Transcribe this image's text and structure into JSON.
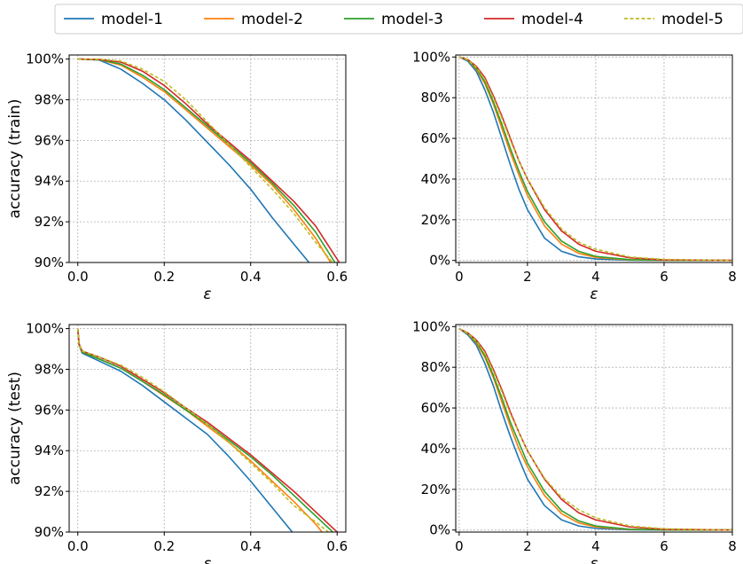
{
  "legend": {
    "placement": "top-center",
    "entries": [
      {
        "name": "model-1",
        "color": "#1f77b4",
        "dash": "solid"
      },
      {
        "name": "model-2",
        "color": "#ff7f0e",
        "dash": "solid"
      },
      {
        "name": "model-3",
        "color": "#2ca02c",
        "dash": "solid"
      },
      {
        "name": "model-4",
        "color": "#d62728",
        "dash": "solid"
      },
      {
        "name": "model-5",
        "color": "#bcbd22",
        "dash": "dashed"
      }
    ]
  },
  "chart_data": [
    {
      "type": "line",
      "panel": "top-left",
      "xlabel": "ε",
      "ylabel": "accuracy (train)",
      "xlim": [
        -0.02,
        0.62
      ],
      "ylim": [
        90,
        100.2
      ],
      "xticks": [
        0.0,
        0.2,
        0.4,
        0.6
      ],
      "xtick_labels": [
        "0.0",
        "0.2",
        "0.4",
        "0.6"
      ],
      "yticks": [
        90,
        92,
        94,
        96,
        98,
        100
      ],
      "ytick_labels": [
        "90%",
        "92%",
        "94%",
        "96%",
        "98%",
        "100%"
      ],
      "grid": true,
      "series": [
        {
          "name": "model-1",
          "x": [
            0,
            0.05,
            0.1,
            0.15,
            0.2,
            0.25,
            0.3,
            0.35,
            0.4,
            0.45,
            0.5,
            0.535
          ],
          "y": [
            100,
            99.95,
            99.5,
            98.8,
            98.0,
            97.0,
            95.9,
            94.8,
            93.6,
            92.2,
            90.9,
            90.0
          ]
        },
        {
          "name": "model-2",
          "x": [
            0,
            0.05,
            0.1,
            0.15,
            0.2,
            0.25,
            0.3,
            0.35,
            0.4,
            0.45,
            0.5,
            0.55,
            0.585
          ],
          "y": [
            100,
            99.97,
            99.7,
            99.1,
            98.4,
            97.5,
            96.6,
            95.7,
            94.8,
            93.8,
            92.6,
            91.2,
            90.0
          ]
        },
        {
          "name": "model-3",
          "x": [
            0,
            0.05,
            0.1,
            0.15,
            0.2,
            0.25,
            0.3,
            0.35,
            0.4,
            0.45,
            0.5,
            0.55,
            0.595
          ],
          "y": [
            100,
            99.97,
            99.75,
            99.2,
            98.5,
            97.6,
            96.7,
            95.8,
            94.9,
            93.9,
            92.8,
            91.5,
            90.0
          ]
        },
        {
          "name": "model-4",
          "x": [
            0,
            0.05,
            0.1,
            0.15,
            0.2,
            0.25,
            0.3,
            0.35,
            0.4,
            0.45,
            0.5,
            0.55,
            0.605
          ],
          "y": [
            100,
            99.98,
            99.85,
            99.4,
            98.7,
            97.8,
            96.8,
            95.9,
            95.0,
            94.0,
            93.0,
            91.8,
            90.0
          ]
        },
        {
          "name": "model-5",
          "x": [
            0,
            0.05,
            0.1,
            0.15,
            0.2,
            0.25,
            0.3,
            0.35,
            0.4,
            0.45,
            0.5,
            0.55,
            0.59
          ],
          "y": [
            100,
            99.99,
            99.9,
            99.5,
            98.9,
            98.0,
            96.9,
            95.8,
            94.7,
            93.6,
            92.4,
            91.0,
            90.0
          ]
        }
      ]
    },
    {
      "type": "line",
      "panel": "top-right",
      "xlabel": "ε",
      "ylabel": "",
      "xlim": [
        -0.1,
        8
      ],
      "ylim": [
        -1,
        101
      ],
      "xticks": [
        0,
        2,
        4,
        6,
        8
      ],
      "xtick_labels": [
        "0",
        "2",
        "4",
        "6",
        "8"
      ],
      "yticks": [
        0,
        20,
        40,
        60,
        80,
        100
      ],
      "ytick_labels": [
        "0%",
        "20%",
        "40%",
        "60%",
        "80%",
        "100%"
      ],
      "grid": true,
      "series": [
        {
          "name": "model-1",
          "x": [
            0,
            0.25,
            0.5,
            0.75,
            1,
            1.25,
            1.5,
            1.75,
            2,
            2.5,
            3,
            3.5,
            4,
            5,
            6,
            8
          ],
          "y": [
            100,
            98,
            93,
            84,
            73,
            60,
            47,
            35,
            25,
            11,
            4.5,
            1.8,
            0.7,
            0.1,
            0,
            0
          ]
        },
        {
          "name": "model-2",
          "x": [
            0,
            0.25,
            0.5,
            0.75,
            1,
            1.25,
            1.5,
            1.75,
            2,
            2.5,
            3,
            3.5,
            4,
            5,
            6,
            8
          ],
          "y": [
            100,
            98.5,
            94,
            87,
            77,
            65,
            53,
            42,
            32,
            17,
            8,
            3.5,
            1.5,
            0.3,
            0.05,
            0
          ]
        },
        {
          "name": "model-3",
          "x": [
            0,
            0.25,
            0.5,
            0.75,
            1,
            1.25,
            1.5,
            1.75,
            2,
            2.5,
            3,
            3.5,
            4,
            5,
            6,
            8
          ],
          "y": [
            100,
            98.6,
            94.5,
            88,
            78,
            67,
            55,
            44,
            34,
            19,
            9.5,
            4.5,
            2,
            0.4,
            0.1,
            0
          ]
        },
        {
          "name": "model-4",
          "x": [
            0,
            0.25,
            0.5,
            0.75,
            1,
            1.25,
            1.5,
            1.75,
            2,
            2.5,
            3,
            3.5,
            4,
            5,
            6,
            8
          ],
          "y": [
            100,
            98.8,
            95.5,
            90,
            81,
            71,
            60,
            49,
            40,
            25,
            14.5,
            8,
            4.5,
            1.3,
            0.3,
            0
          ]
        },
        {
          "name": "model-5",
          "x": [
            0,
            0.25,
            0.5,
            0.75,
            1,
            1.25,
            1.5,
            1.75,
            2,
            2.5,
            3,
            3.5,
            4,
            5,
            6,
            8
          ],
          "y": [
            100,
            98.7,
            95,
            89,
            80,
            70,
            59,
            49,
            40,
            26,
            15.5,
            9,
            5.5,
            1.7,
            0.5,
            0
          ]
        }
      ]
    },
    {
      "type": "line",
      "panel": "bottom-left",
      "xlabel": "ε",
      "ylabel": "accuracy (test)",
      "xlim": [
        -0.02,
        0.62
      ],
      "ylim": [
        90,
        100.2
      ],
      "xticks": [
        0.0,
        0.2,
        0.4,
        0.6
      ],
      "xtick_labels": [
        "0.0",
        "0.2",
        "0.4",
        "0.6"
      ],
      "yticks": [
        90,
        92,
        94,
        96,
        98,
        100
      ],
      "ytick_labels": [
        "90%",
        "92%",
        "94%",
        "96%",
        "98%",
        "100%"
      ],
      "grid": true,
      "series": [
        {
          "name": "model-1",
          "x": [
            0,
            0.003,
            0.01,
            0.05,
            0.1,
            0.15,
            0.2,
            0.25,
            0.3,
            0.35,
            0.4,
            0.45,
            0.5
          ],
          "y": [
            100,
            99.2,
            98.8,
            98.4,
            97.9,
            97.2,
            96.4,
            95.6,
            94.8,
            93.7,
            92.5,
            91.2,
            89.9
          ]
        },
        {
          "name": "model-2",
          "x": [
            0,
            0.003,
            0.01,
            0.05,
            0.1,
            0.15,
            0.2,
            0.25,
            0.3,
            0.35,
            0.4,
            0.45,
            0.5,
            0.55,
            0.565
          ],
          "y": [
            100,
            99.2,
            98.85,
            98.5,
            98.05,
            97.4,
            96.7,
            96.0,
            95.2,
            94.4,
            93.5,
            92.5,
            91.5,
            90.4,
            90.0
          ]
        },
        {
          "name": "model-3",
          "x": [
            0,
            0.003,
            0.01,
            0.05,
            0.1,
            0.15,
            0.2,
            0.25,
            0.3,
            0.35,
            0.4,
            0.45,
            0.5,
            0.55,
            0.59
          ],
          "y": [
            100,
            99.2,
            98.85,
            98.5,
            98.05,
            97.4,
            96.75,
            96.0,
            95.3,
            94.5,
            93.7,
            92.8,
            91.8,
            90.8,
            90.0
          ]
        },
        {
          "name": "model-4",
          "x": [
            0,
            0.003,
            0.01,
            0.05,
            0.1,
            0.15,
            0.2,
            0.25,
            0.3,
            0.35,
            0.4,
            0.45,
            0.5,
            0.55,
            0.6
          ],
          "y": [
            100,
            99.25,
            98.9,
            98.6,
            98.15,
            97.5,
            96.85,
            96.1,
            95.4,
            94.6,
            93.8,
            92.9,
            92.0,
            91.0,
            90.0
          ]
        },
        {
          "name": "model-5",
          "x": [
            0,
            0.003,
            0.01,
            0.05,
            0.1,
            0.15,
            0.2,
            0.25,
            0.3,
            0.35,
            0.4,
            0.45,
            0.5,
            0.55,
            0.58
          ],
          "y": [
            100,
            99.2,
            98.9,
            98.6,
            98.2,
            97.6,
            96.9,
            96.1,
            95.3,
            94.4,
            93.4,
            92.4,
            91.3,
            90.5,
            90.0
          ]
        }
      ]
    },
    {
      "type": "line",
      "panel": "bottom-right",
      "xlabel": "ε",
      "ylabel": "",
      "xlim": [
        -0.1,
        8
      ],
      "ylim": [
        -1,
        101
      ],
      "xticks": [
        0,
        2,
        4,
        6,
        8
      ],
      "xtick_labels": [
        "0",
        "2",
        "4",
        "6",
        "8"
      ],
      "yticks": [
        0,
        20,
        40,
        60,
        80,
        100
      ],
      "ytick_labels": [
        "0%",
        "20%",
        "40%",
        "60%",
        "80%",
        "100%"
      ],
      "grid": true,
      "series": [
        {
          "name": "model-1",
          "x": [
            0,
            0.25,
            0.5,
            0.75,
            1,
            1.25,
            1.5,
            1.75,
            2,
            2.5,
            3,
            3.5,
            4,
            5,
            6,
            8
          ],
          "y": [
            99,
            96,
            91,
            82,
            71,
            58,
            46,
            35,
            25,
            12,
            5,
            2,
            0.8,
            0.1,
            0,
            0
          ]
        },
        {
          "name": "model-2",
          "x": [
            0,
            0.25,
            0.5,
            0.75,
            1,
            1.25,
            1.5,
            1.75,
            2,
            2.5,
            3,
            3.5,
            4,
            5,
            6,
            8
          ],
          "y": [
            99,
            96.5,
            92,
            85,
            75,
            63,
            51,
            40,
            31,
            17,
            8,
            3.5,
            1.5,
            0.3,
            0.1,
            0
          ]
        },
        {
          "name": "model-3",
          "x": [
            0,
            0.25,
            0.5,
            0.75,
            1,
            1.25,
            1.5,
            1.75,
            2,
            2.5,
            3,
            3.5,
            4,
            5,
            6,
            8
          ],
          "y": [
            99,
            96.6,
            92.5,
            86,
            76,
            65,
            53,
            43,
            33,
            19,
            9.5,
            4.5,
            2,
            0.4,
            0.1,
            0
          ]
        },
        {
          "name": "model-4",
          "x": [
            0,
            0.25,
            0.5,
            0.75,
            1,
            1.25,
            1.5,
            1.75,
            2,
            2.5,
            3,
            3.5,
            4,
            5,
            6,
            8
          ],
          "y": [
            99,
            97,
            93.5,
            88,
            79,
            69,
            58,
            48,
            39,
            25,
            15,
            8.5,
            5,
            1.5,
            0.4,
            0
          ]
        },
        {
          "name": "model-5",
          "x": [
            0,
            0.25,
            0.5,
            0.75,
            1,
            1.25,
            1.5,
            1.75,
            2,
            2.5,
            3,
            3.5,
            4,
            5,
            6,
            8
          ],
          "y": [
            99,
            96.8,
            93,
            87,
            78,
            68,
            57,
            48,
            39,
            25.5,
            16,
            10,
            6,
            2,
            0.6,
            0
          ]
        }
      ]
    }
  ]
}
